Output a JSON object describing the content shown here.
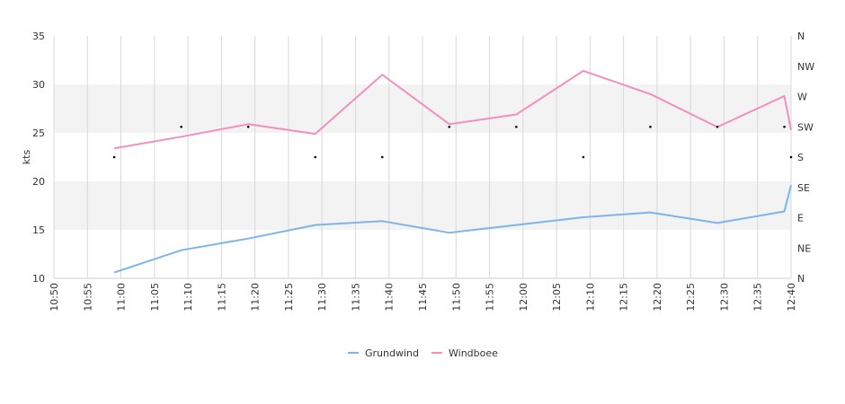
{
  "chart_data": {
    "type": "line",
    "ylabel": "kts",
    "ylim": [
      10,
      35
    ],
    "yticks": [
      10,
      15,
      20,
      25,
      30,
      35
    ],
    "xlim": [
      "10:50",
      "12:40"
    ],
    "xticks": [
      "10:50",
      "10:55",
      "11:00",
      "11:05",
      "11:10",
      "11:15",
      "11:20",
      "11:25",
      "11:30",
      "11:35",
      "11:40",
      "11:45",
      "11:50",
      "11:55",
      "12:00",
      "12:05",
      "12:10",
      "12:15",
      "12:20",
      "12:25",
      "12:30",
      "12:35",
      "12:40"
    ],
    "y2_ticks": [
      "N",
      "NE",
      "E",
      "SE",
      "S",
      "SW",
      "W",
      "NW",
      "N"
    ],
    "bands": [
      [
        15,
        20
      ],
      [
        25,
        30
      ]
    ],
    "grid": "vertical",
    "legend_position": "bottom",
    "series": [
      {
        "name": "Grundwind",
        "color": "#7cb5ec",
        "points": [
          [
            "10:59",
            10.6
          ],
          [
            "11:09",
            12.9
          ],
          [
            "11:19",
            14.1
          ],
          [
            "11:29",
            15.5
          ],
          [
            "11:39",
            15.9
          ],
          [
            "11:49",
            14.7
          ],
          [
            "11:59",
            15.5
          ],
          [
            "12:09",
            16.3
          ],
          [
            "12:19",
            16.8
          ],
          [
            "12:29",
            15.7
          ],
          [
            "12:39",
            16.9
          ],
          [
            "12:40",
            19.6
          ]
        ]
      },
      {
        "name": "Windboee",
        "color": "#f28fbf",
        "points": [
          [
            "10:59",
            23.4
          ],
          [
            "11:09",
            24.6
          ],
          [
            "11:19",
            25.9
          ],
          [
            "11:29",
            24.9
          ],
          [
            "11:39",
            31.0
          ],
          [
            "11:49",
            25.9
          ],
          [
            "11:59",
            26.9
          ],
          [
            "12:09",
            31.4
          ],
          [
            "12:19",
            29.0
          ],
          [
            "12:29",
            25.6
          ],
          [
            "12:39",
            28.8
          ],
          [
            "12:40",
            25.3
          ]
        ]
      }
    ],
    "wind_direction": {
      "markers": [
        [
          "10:59",
          "S"
        ],
        [
          "11:09",
          "SW"
        ],
        [
          "11:19",
          "SW"
        ],
        [
          "11:29",
          "S"
        ],
        [
          "11:39",
          "S"
        ],
        [
          "11:49",
          "SW"
        ],
        [
          "11:59",
          "SW"
        ],
        [
          "12:09",
          "S"
        ],
        [
          "12:19",
          "SW"
        ],
        [
          "12:29",
          "SW"
        ],
        [
          "12:39",
          "SW"
        ],
        [
          "12:40",
          "S"
        ]
      ]
    }
  }
}
